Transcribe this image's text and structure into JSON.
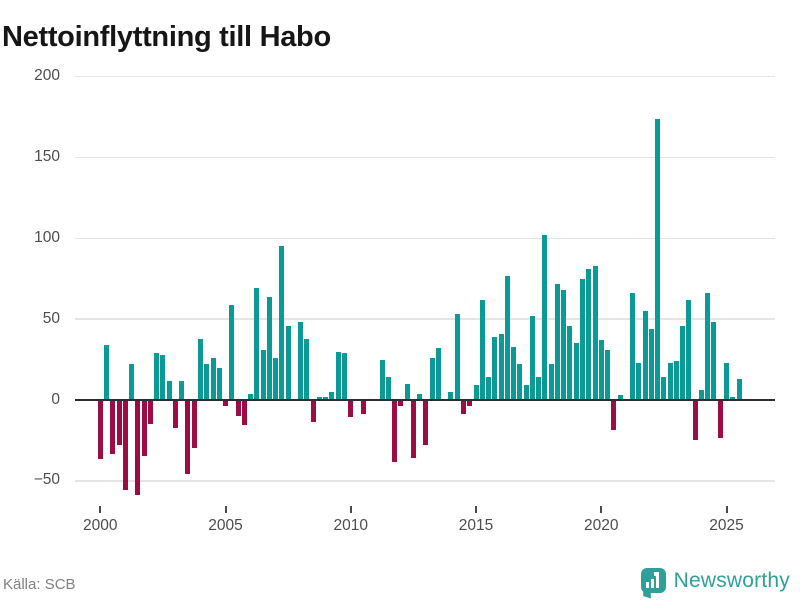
{
  "title": "Nettoinflyttning till Habo",
  "source": "Källa: SCB",
  "brand": {
    "name": "Newsworthy",
    "icon": "bar-chart-badge-icon"
  },
  "colors": {
    "positive_bar": "#0b9b97",
    "negative_bar": "#9d0d44",
    "gridline": "#e4e4e4",
    "zero_line": "#2d2d2d",
    "axis_text": "#4d4d4d",
    "brand_teal": "#2f9f9a"
  },
  "chart_data": {
    "type": "bar",
    "title": "Nettoinflyttning till Habo",
    "frequency": "quarterly",
    "xlabel": "",
    "ylabel": "",
    "x_tick_labels": [
      "2000",
      "2005",
      "2010",
      "2015",
      "2020",
      "2025"
    ],
    "y_ticks": [
      200,
      150,
      100,
      50,
      0,
      -50
    ],
    "y_tick_labels": [
      "200",
      "150",
      "100",
      "50",
      "0",
      "−50"
    ],
    "ylim": [
      -62,
      215
    ],
    "grid": true,
    "legend": false,
    "positive_color": "#0b9b97",
    "negative_color": "#9d0d44",
    "series": [
      {
        "year": 2000,
        "values": [
          -36,
          34,
          -33,
          -27
        ]
      },
      {
        "year": 2001,
        "values": [
          -55,
          22,
          -58,
          -34
        ]
      },
      {
        "year": 2002,
        "values": [
          -14,
          29,
          28,
          12
        ]
      },
      {
        "year": 2003,
        "values": [
          -17,
          12,
          -45,
          -29
        ]
      },
      {
        "year": 2004,
        "values": [
          38,
          22,
          26,
          20
        ]
      },
      {
        "year": 2005,
        "values": [
          -3,
          59,
          -9,
          -15
        ]
      },
      {
        "year": 2006,
        "values": [
          4,
          69,
          31,
          64
        ]
      },
      {
        "year": 2007,
        "values": [
          26,
          95,
          46,
          0
        ]
      },
      {
        "year": 2008,
        "values": [
          48,
          38,
          -13,
          2
        ]
      },
      {
        "year": 2009,
        "values": [
          2,
          5,
          30,
          29
        ]
      },
      {
        "year": 2010,
        "values": [
          -10,
          0,
          -8,
          0
        ]
      },
      {
        "year": 2011,
        "values": [
          0,
          25,
          14,
          -38
        ]
      },
      {
        "year": 2012,
        "values": [
          -3,
          10,
          -35,
          4
        ]
      },
      {
        "year": 2013,
        "values": [
          -27,
          26,
          32,
          0
        ]
      },
      {
        "year": 2014,
        "values": [
          5,
          53,
          -8,
          -3
        ]
      },
      {
        "year": 2015,
        "values": [
          9,
          62,
          14,
          39
        ]
      },
      {
        "year": 2016,
        "values": [
          41,
          77,
          33,
          22
        ]
      },
      {
        "year": 2017,
        "values": [
          9,
          52,
          14,
          102
        ]
      },
      {
        "year": 2018,
        "values": [
          22,
          72,
          68,
          46
        ]
      },
      {
        "year": 2019,
        "values": [
          35,
          75,
          81,
          83
        ]
      },
      {
        "year": 2020,
        "values": [
          37,
          31,
          -18,
          3
        ]
      },
      {
        "year": 2021,
        "values": [
          0,
          66,
          23,
          55
        ]
      },
      {
        "year": 2022,
        "values": [
          44,
          174,
          14,
          23
        ]
      },
      {
        "year": 2023,
        "values": [
          24,
          46,
          62,
          -24
        ]
      },
      {
        "year": 2024,
        "values": [
          6,
          66,
          48,
          -23
        ]
      },
      {
        "year": 2025,
        "values": [
          23,
          2,
          13
        ]
      }
    ]
  }
}
